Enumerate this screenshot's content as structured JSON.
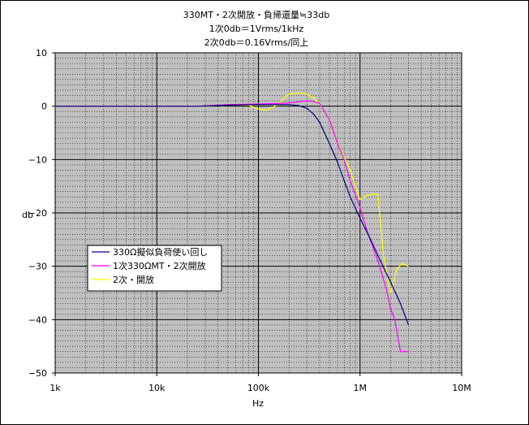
{
  "chart_data": {
    "type": "line",
    "title_lines": [
      "330MT・2次開放・負帰還量≒33db",
      "1次0db＝1Vrms/1kHz",
      "2次0db＝0.16Vrms/同上"
    ],
    "xlabel": "Hz",
    "ylabel": "db",
    "x_scale": "log",
    "xlim": [
      1000,
      10000000
    ],
    "ylim": [
      -50,
      10
    ],
    "x_ticks": [
      1000,
      10000,
      100000,
      1000000,
      10000000
    ],
    "x_tick_labels": [
      "1k",
      "10k",
      "100k",
      "1M",
      "10M"
    ],
    "y_ticks": [
      10,
      0,
      -10,
      -20,
      -30,
      -40,
      -50
    ],
    "y_tick_labels": [
      "10",
      "0",
      "−10",
      "−20",
      "−30",
      "−40",
      "−50"
    ],
    "grid": true,
    "legend_position": "left-middle",
    "plot_background": "#c0c0c0",
    "series": [
      {
        "name": "330Ω擬似負荷使い回し",
        "color": "#000080",
        "x": [
          1000,
          25000,
          50000,
          100000,
          150000,
          200000,
          250000,
          300000,
          350000,
          400000,
          500000,
          600000,
          700000,
          800000,
          1000000,
          1200000,
          1500000,
          2000000,
          2500000,
          3000000
        ],
        "y": [
          0,
          0,
          0.2,
          0.3,
          0.3,
          0.3,
          0.1,
          -0.4,
          -1.5,
          -3,
          -7,
          -10.5,
          -14,
          -17,
          -21,
          -24,
          -28,
          -33,
          -37,
          -41
        ]
      },
      {
        "name": "1次330ΩMT・2次開放",
        "color": "#ff00ff",
        "x": [
          1000,
          25000,
          50000,
          100000,
          150000,
          200000,
          250000,
          300000,
          350000,
          400000,
          500000,
          600000,
          700000,
          800000,
          1000000,
          1200000,
          1500000,
          1800000,
          2000000,
          2200000,
          2500000,
          3000000
        ],
        "y": [
          0,
          0,
          0.3,
          0.4,
          0.5,
          0.6,
          0.8,
          1.0,
          0.9,
          0.5,
          -2.5,
          -7,
          -10,
          -14,
          -19,
          -24,
          -29,
          -34,
          -38,
          -40,
          -46,
          -46
        ]
      },
      {
        "name": "2次・開放",
        "color": "#ffff00",
        "x": [
          1000,
          25000,
          50000,
          80000,
          100000,
          120000,
          150000,
          180000,
          200000,
          250000,
          300000,
          350000,
          400000,
          450000,
          500000,
          600000,
          700000,
          800000,
          900000,
          1000000,
          1100000,
          1300000,
          1500000,
          1700000,
          2000000,
          2300000,
          2600000,
          3000000
        ],
        "y": [
          0,
          0,
          0.2,
          0.2,
          -0.5,
          -0.8,
          0.2,
          1.5,
          2.3,
          2.5,
          2.3,
          1.5,
          0.3,
          -1.0,
          -2.5,
          -7,
          -9.5,
          -12,
          -15,
          -17.5,
          -17,
          -16.5,
          -16.5,
          -28,
          -35,
          -30.5,
          -29.5,
          -30
        ]
      }
    ]
  }
}
